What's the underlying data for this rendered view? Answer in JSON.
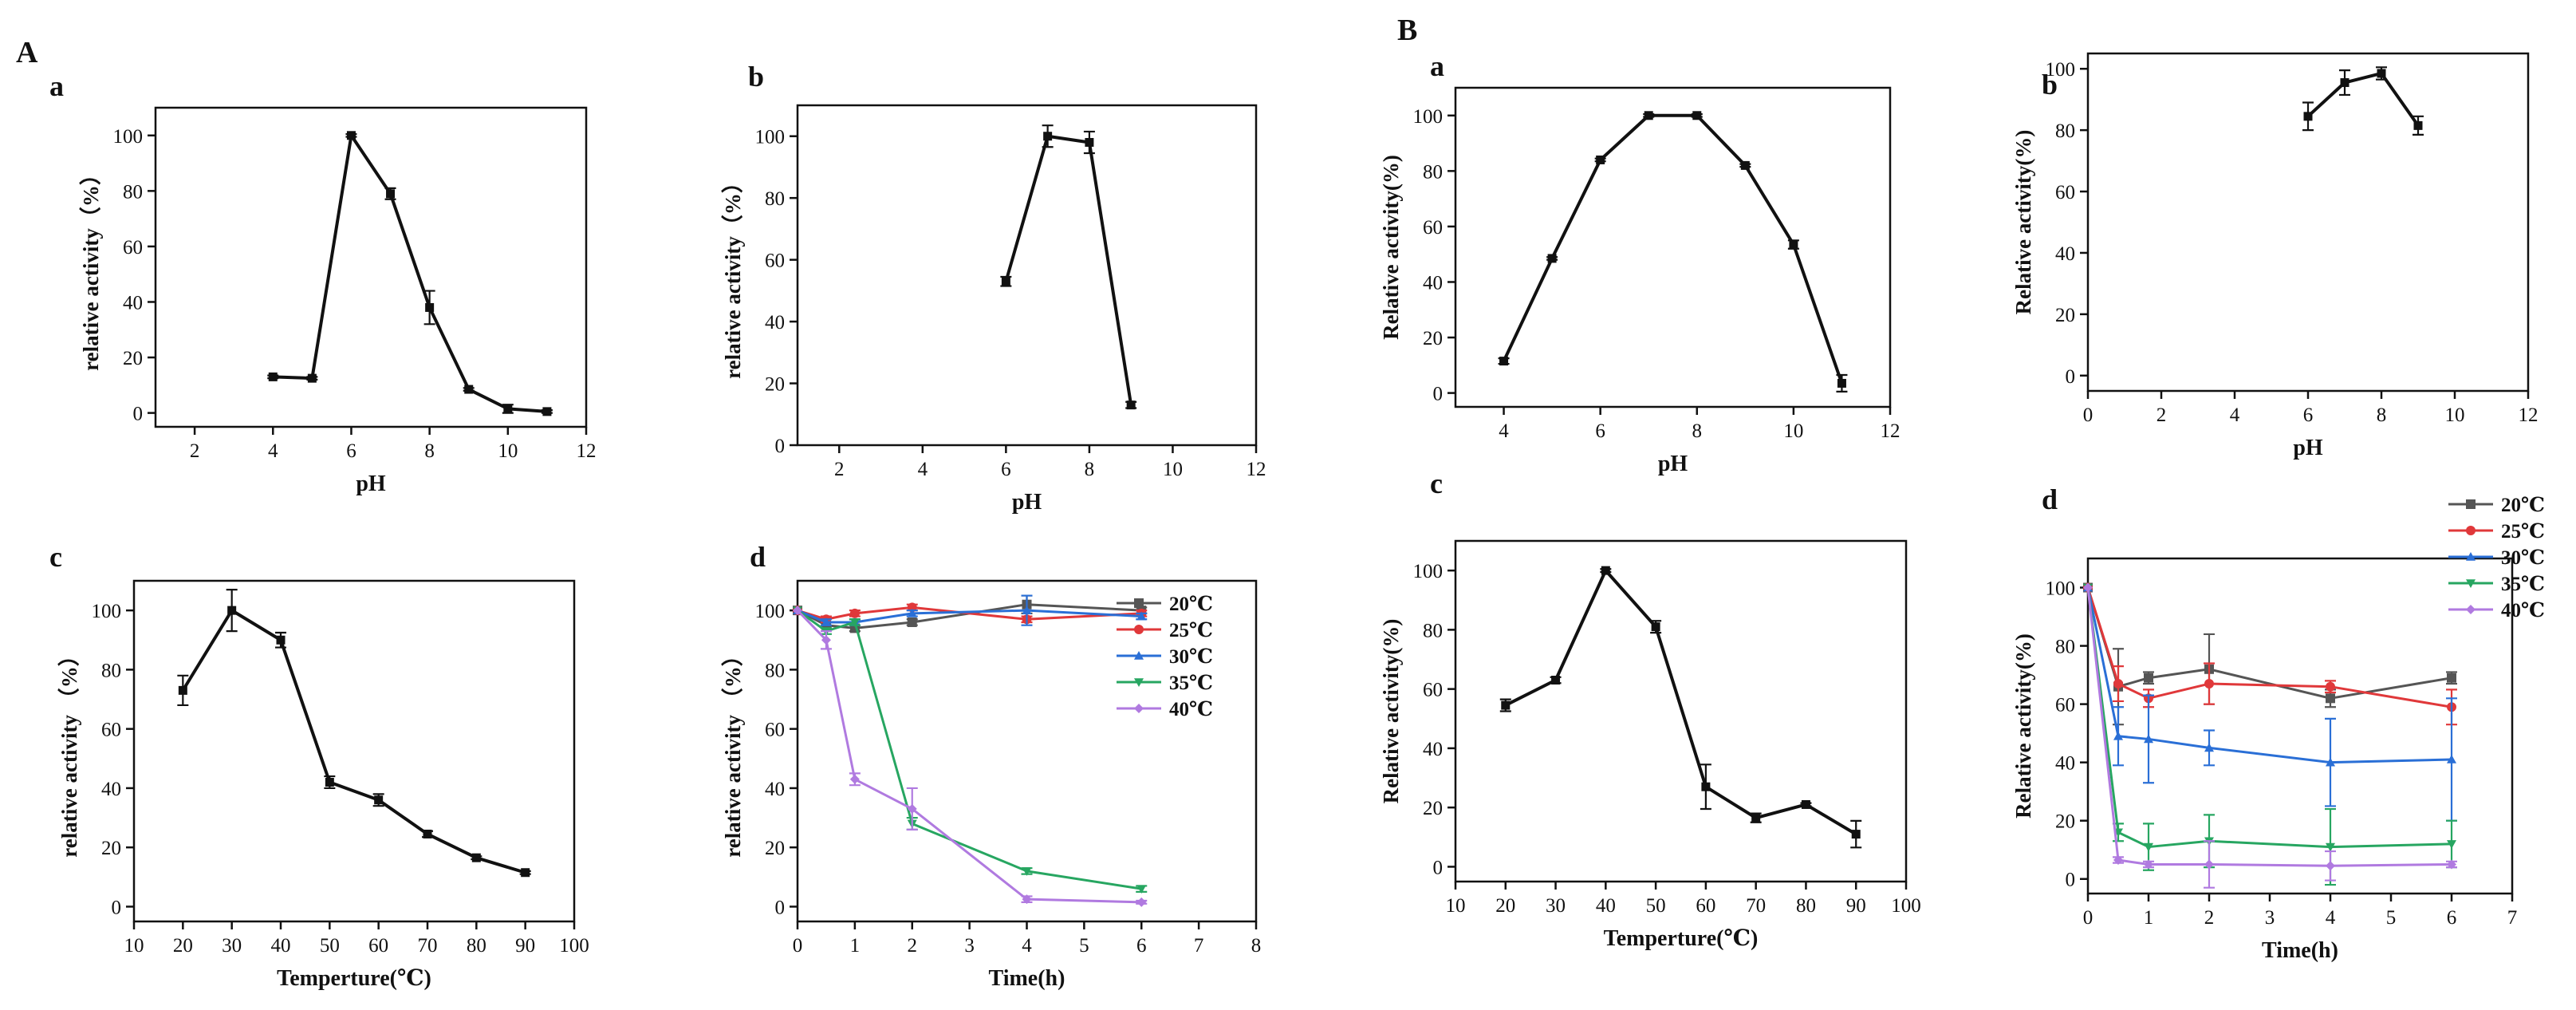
{
  "panel_labels": {
    "A": "A",
    "B": "B"
  },
  "chart_data": [
    {
      "id": "A-a",
      "letter": "a",
      "type": "line",
      "xlabel": "pH",
      "ylabel": "relative activity（%）",
      "xlim": [
        1,
        12
      ],
      "ylim": [
        -5,
        110
      ],
      "xticks": [
        2,
        4,
        6,
        8,
        10,
        12
      ],
      "yticks": [
        0,
        20,
        40,
        60,
        80,
        100
      ],
      "series": [
        {
          "name": "",
          "color": "#111111",
          "marker": "square",
          "x": [
            4,
            5,
            6,
            7,
            8,
            9,
            10,
            11
          ],
          "y": [
            13,
            12.5,
            100,
            79,
            38,
            8.5,
            1.5,
            0.5
          ],
          "err": [
            0.5,
            0.5,
            0.5,
            2,
            6,
            0.5,
            1.5,
            0.5
          ]
        }
      ]
    },
    {
      "id": "A-b",
      "letter": "b",
      "type": "line",
      "xlabel": "pH",
      "ylabel": "relative activity（%）",
      "xlim": [
        1,
        12
      ],
      "ylim": [
        0,
        110
      ],
      "xticks": [
        2,
        4,
        6,
        8,
        10,
        12
      ],
      "yticks": [
        0,
        20,
        40,
        60,
        80,
        100
      ],
      "series": [
        {
          "name": "",
          "color": "#111111",
          "marker": "square",
          "x": [
            6,
            7,
            8,
            9
          ],
          "y": [
            53,
            100,
            98,
            13
          ],
          "err": [
            1.5,
            3.5,
            3.5,
            1
          ]
        }
      ]
    },
    {
      "id": "A-c",
      "letter": "c",
      "type": "line",
      "xlabel": "Temperture(℃)",
      "ylabel": "relative activity （%）",
      "xlim": [
        10,
        100
      ],
      "ylim": [
        -5,
        110
      ],
      "xticks": [
        10,
        20,
        30,
        40,
        50,
        60,
        70,
        80,
        90,
        100
      ],
      "yticks": [
        0,
        20,
        40,
        60,
        80,
        100
      ],
      "series": [
        {
          "name": "",
          "color": "#111111",
          "marker": "square",
          "x": [
            20,
            30,
            40,
            50,
            60,
            70,
            80,
            90
          ],
          "y": [
            73,
            100,
            90,
            42,
            36,
            24.5,
            16.5,
            11.5
          ],
          "err": [
            5,
            7,
            2.5,
            2,
            2,
            1,
            0.5,
            0.5
          ]
        }
      ]
    },
    {
      "id": "A-d",
      "letter": "d",
      "type": "line",
      "xlabel": "Time(h)",
      "ylabel": "relative activity （%）",
      "xlim": [
        0,
        8
      ],
      "ylim": [
        -5,
        110
      ],
      "xticks": [
        0,
        1,
        2,
        3,
        4,
        5,
        6,
        7,
        8
      ],
      "yticks": [
        0,
        20,
        40,
        60,
        80,
        100
      ],
      "legend": "top-right",
      "series": [
        {
          "name": "20℃",
          "color": "#555555",
          "marker": "square",
          "x": [
            0,
            0.5,
            1,
            2,
            4,
            6
          ],
          "y": [
            100,
            95,
            94,
            96,
            102,
            100
          ],
          "err": [
            0,
            1,
            1,
            1,
            3,
            1
          ]
        },
        {
          "name": "25℃",
          "color": "#e0383a",
          "marker": "circle",
          "x": [
            0,
            0.5,
            1,
            2,
            4,
            6
          ],
          "y": [
            100,
            97,
            99,
            101,
            97,
            99
          ],
          "err": [
            0,
            1,
            1,
            1,
            1,
            1
          ]
        },
        {
          "name": "30℃",
          "color": "#2a6fd6",
          "marker": "triangle",
          "x": [
            0,
            0.5,
            1,
            2,
            4,
            6
          ],
          "y": [
            100,
            96,
            96,
            99,
            100,
            98
          ],
          "err": [
            0,
            1,
            1,
            1,
            5,
            1
          ]
        },
        {
          "name": "35℃",
          "color": "#27a661",
          "marker": "triangle-down",
          "x": [
            0,
            0.5,
            1,
            2,
            4,
            6
          ],
          "y": [
            100,
            93,
            96,
            28,
            12,
            6
          ],
          "err": [
            0,
            1,
            1,
            2,
            1,
            1
          ]
        },
        {
          "name": "40℃",
          "color": "#b07ae0",
          "marker": "diamond",
          "x": [
            0,
            0.5,
            1,
            2,
            4,
            6
          ],
          "y": [
            100,
            90,
            43,
            33,
            2.5,
            1.5
          ],
          "err": [
            0,
            3,
            2,
            7,
            1,
            0.5
          ]
        }
      ]
    },
    {
      "id": "B-a",
      "letter": "a",
      "type": "line",
      "xlabel": "pH",
      "ylabel": "Relative activity(%)",
      "xlim": [
        3,
        12
      ],
      "ylim": [
        -5,
        110
      ],
      "xticks": [
        4,
        6,
        8,
        10,
        12
      ],
      "yticks": [
        0,
        20,
        40,
        60,
        80,
        100
      ],
      "series": [
        {
          "name": "",
          "color": "#111111",
          "marker": "square",
          "x": [
            4,
            5,
            6,
            7,
            8,
            9,
            10,
            11
          ],
          "y": [
            11.5,
            48.5,
            84,
            100,
            100,
            82,
            53.5,
            3.5
          ],
          "err": [
            1,
            0.5,
            0.5,
            0.5,
            0.5,
            0.5,
            1.5,
            3
          ]
        }
      ]
    },
    {
      "id": "B-b",
      "letter": "b",
      "type": "line",
      "xlabel": "pH",
      "ylabel": "Relative activity(%)",
      "xlim": [
        0,
        12
      ],
      "ylim": [
        -5,
        105
      ],
      "xticks": [
        0,
        2,
        4,
        6,
        8,
        10,
        12
      ],
      "yticks": [
        0,
        20,
        40,
        60,
        80,
        100
      ],
      "series": [
        {
          "name": "",
          "color": "#111111",
          "marker": "square",
          "x": [
            6,
            7,
            8,
            9
          ],
          "y": [
            84.5,
            95.5,
            98.5,
            81.5
          ],
          "err": [
            4.5,
            4,
            2,
            3
          ]
        }
      ]
    },
    {
      "id": "B-c",
      "letter": "c",
      "type": "line",
      "xlabel": "Temperture(℃)",
      "ylabel": "Relative activity(%)",
      "xlim": [
        10,
        100
      ],
      "ylim": [
        -5,
        110
      ],
      "xticks": [
        10,
        20,
        30,
        40,
        50,
        60,
        70,
        80,
        90,
        100
      ],
      "yticks": [
        0,
        20,
        40,
        60,
        80,
        100
      ],
      "series": [
        {
          "name": "",
          "color": "#111111",
          "marker": "square",
          "x": [
            20,
            30,
            40,
            50,
            60,
            70,
            80,
            90
          ],
          "y": [
            54.5,
            63,
            100,
            81,
            27,
            16.5,
            21,
            11
          ],
          "err": [
            2,
            1,
            0.5,
            2,
            7.5,
            1.5,
            0.5,
            4.5
          ]
        }
      ]
    },
    {
      "id": "B-d",
      "letter": "d",
      "type": "line",
      "xlabel": "Time(h)",
      "ylabel": "Relative activity(%)",
      "xlim": [
        0,
        7
      ],
      "ylim": [
        -5,
        110
      ],
      "xticks": [
        0,
        1,
        2,
        3,
        4,
        5,
        6,
        7
      ],
      "yticks": [
        0,
        20,
        40,
        60,
        80,
        100
      ],
      "legend": "top-right-outside",
      "series": [
        {
          "name": "20℃",
          "color": "#555555",
          "marker": "square",
          "x": [
            0,
            0.5,
            1,
            2,
            4,
            6
          ],
          "y": [
            100,
            66,
            69,
            72,
            62,
            69
          ],
          "err": [
            0,
            13,
            2,
            12,
            3,
            2
          ]
        },
        {
          "name": "25℃",
          "color": "#e0383a",
          "marker": "circle",
          "x": [
            0,
            0.5,
            1,
            2,
            4,
            6
          ],
          "y": [
            100,
            67,
            62,
            67,
            66,
            59
          ],
          "err": [
            0,
            6,
            3,
            7,
            2,
            6
          ]
        },
        {
          "name": "30℃",
          "color": "#2a6fd6",
          "marker": "triangle",
          "x": [
            0,
            0.5,
            1,
            2,
            4,
            6
          ],
          "y": [
            100,
            49,
            48,
            45,
            40,
            41
          ],
          "err": [
            0,
            10,
            15,
            6,
            15,
            21
          ]
        },
        {
          "name": "35℃",
          "color": "#27a661",
          "marker": "triangle-down",
          "x": [
            0,
            0.5,
            1,
            2,
            4,
            6
          ],
          "y": [
            100,
            16,
            11,
            13,
            11,
            12
          ],
          "err": [
            0,
            3,
            8,
            9,
            13,
            8
          ]
        },
        {
          "name": "40℃",
          "color": "#b07ae0",
          "marker": "diamond",
          "x": [
            0,
            0.5,
            1,
            2,
            4,
            6
          ],
          "y": [
            100,
            6.5,
            5,
            5,
            4.5,
            5
          ],
          "err": [
            0,
            1,
            1,
            8,
            5,
            1
          ]
        }
      ]
    }
  ]
}
